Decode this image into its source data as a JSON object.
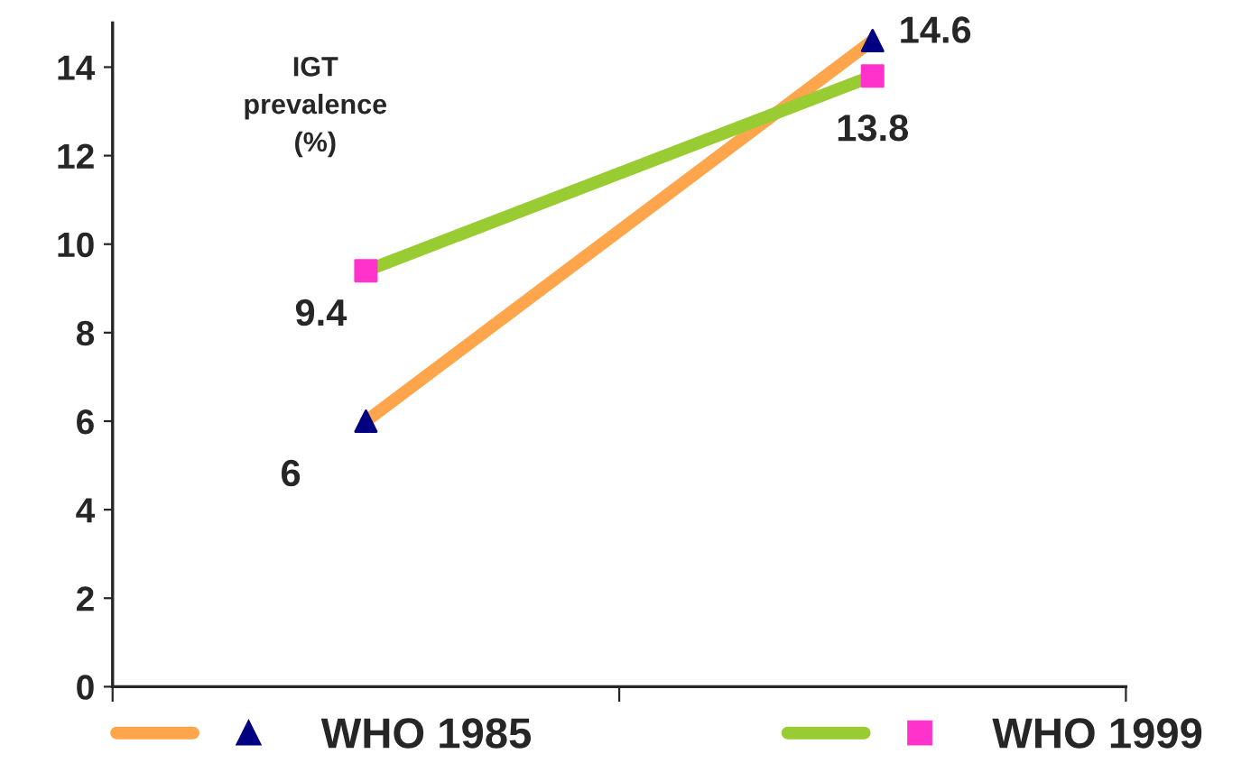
{
  "chart_data": {
    "type": "line",
    "ylabel": "IGT\nprevalence\n(%)",
    "categories": [
      null,
      null
    ],
    "series": [
      {
        "name": "WHO 1985",
        "color": "#ffa64d",
        "marker": "triangle",
        "colors": [
          "#000080",
          "#000080"
        ],
        "values": [
          6,
          14.6
        ]
      },
      {
        "name": "WHO 1999",
        "color": "#99cc33",
        "marker": "square",
        "colors": [
          "#ff33cc",
          "#ff33cc"
        ],
        "values": [
          9.4,
          13.8
        ]
      }
    ],
    "ylim": [
      0,
      15
    ],
    "yticks": [
      0,
      2,
      4,
      6,
      8,
      10,
      12,
      14
    ],
    "grid": false,
    "legend": "bottom",
    "data_labels": true
  }
}
